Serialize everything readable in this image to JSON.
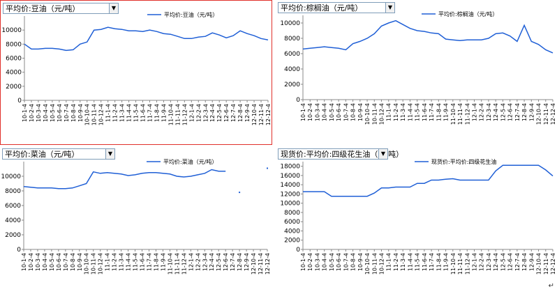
{
  "panels": [
    {
      "dropdown": "平均价:豆油（元/吨）",
      "chart_data": {
        "type": "line",
        "legend": "平均价:豆油（元/吨）",
        "ylim": [
          0,
          12000
        ],
        "yticks": [
          0,
          2000,
          4000,
          6000,
          8000,
          10000
        ],
        "x_labels": [
          "10-1-4",
          "10-2-4",
          "10-3-4",
          "10-4-4",
          "10-5-4",
          "10-6-4",
          "10-7-4",
          "10-8-4",
          "10-9-4",
          "10-10-4",
          "10-11-4",
          "10-12-4",
          "11-1-4",
          "11-2-4",
          "11-3-4",
          "11-4-4",
          "11-5-4",
          "11-6-4",
          "11-7-4",
          "11-8-4",
          "11-9-4",
          "11-10-4",
          "11-11-4",
          "11-12-4",
          "12-1-4",
          "12-2-4",
          "12-3-4",
          "12-4-4",
          "12-5-4",
          "12-6-4",
          "12-7-4",
          "12-8-4",
          "12-9-4",
          "12-10-4",
          "12-11-4",
          "12-12-4"
        ],
        "series": [
          {
            "name": "平均价:豆油（元/吨）",
            "color": "#1f5fd6",
            "values": [
              8000,
              7300,
              7300,
              7400,
              7400,
              7300,
              7100,
              7200,
              8000,
              8300,
              10000,
              10100,
              10400,
              10200,
              10100,
              9900,
              9900,
              9800,
              10000,
              9800,
              9500,
              9400,
              9100,
              8800,
              8800,
              9000,
              9100,
              9600,
              9300,
              8900,
              9200,
              9900,
              9500,
              9200,
              8800,
              8600
            ]
          }
        ]
      }
    },
    {
      "dropdown": "平均价:棕榈油（元/吨）",
      "chart_data": {
        "type": "line",
        "legend": "平均价:棕榈油（元/吨）",
        "ylim": [
          0,
          11000
        ],
        "yticks": [
          0,
          2000,
          4000,
          6000,
          8000,
          10000
        ],
        "x_labels": [
          "10-1-4",
          "10-2-4",
          "10-3-4",
          "10-4-4",
          "10-5-4",
          "10-6-4",
          "10-7-4",
          "10-8-4",
          "10-9-4",
          "10-10-4",
          "10-11-4",
          "10-12-4",
          "11-1-4",
          "11-2-4",
          "11-3-4",
          "11-4-4",
          "11-5-4",
          "11-6-4",
          "11-7-4",
          "11-8-4",
          "11-9-4",
          "11-10-4",
          "11-11-4",
          "11-12-4",
          "12-1-4",
          "12-2-4",
          "12-3-4",
          "12-4-4",
          "12-5-4",
          "12-6-4",
          "12-7-4",
          "12-8-4",
          "12-9-4",
          "12-10-4",
          "12-11-4",
          "12-12-4"
        ],
        "series": [
          {
            "name": "平均价:棕榈油（元/吨）",
            "color": "#1f5fd6",
            "values": [
              6600,
              6700,
              6800,
              6900,
              6800,
              6700,
              6500,
              7300,
              7600,
              8000,
              8600,
              9600,
              10000,
              10300,
              9800,
              9300,
              9000,
              8900,
              8700,
              8600,
              7900,
              7800,
              7700,
              7800,
              7800,
              7800,
              8000,
              8600,
              8700,
              8300,
              7600,
              9700,
              7600,
              7200,
              6500,
              6100
            ]
          }
        ]
      }
    },
    {
      "dropdown": "平均价:菜油（元/吨）",
      "chart_data": {
        "type": "line",
        "legend": "平均价:菜油（元/吨）",
        "ylim": [
          0,
          12000
        ],
        "yticks": [
          0,
          2000,
          4000,
          6000,
          8000,
          10000
        ],
        "x_labels": [
          "10-1-4",
          "10-2-4",
          "10-3-4",
          "10-4-4",
          "10-5-4",
          "10-6-4",
          "10-7-4",
          "10-8-4",
          "10-9-4",
          "10-10-4",
          "10-11-4",
          "10-12-4",
          "11-1-4",
          "11-2-4",
          "11-3-4",
          "11-4-4",
          "11-5-4",
          "11-6-4",
          "11-7-4",
          "11-8-4",
          "11-9-4",
          "11-10-4",
          "11-11-4",
          "11-12-4",
          "12-1-4",
          "12-2-4",
          "12-3-4",
          "12-4-4",
          "12-5-4",
          "12-6-4",
          "12-7-4",
          "12-8-4",
          "12-9-4",
          "12-10-4",
          "12-11-4",
          "12-12-4"
        ],
        "series": [
          {
            "name": "平均价:菜油（元/吨）",
            "color": "#1f5fd6",
            "values": [
              8600,
              8500,
              8400,
              8400,
              8400,
              8300,
              8300,
              8400,
              8700,
              9000,
              10600,
              10400,
              10500,
              10400,
              10300,
              10100,
              10200,
              10400,
              10500,
              10500,
              10400,
              10300,
              10000,
              9900,
              10000,
              10200,
              10400,
              10900,
              10700,
              10700,
              null,
              7800,
              null,
              null,
              null,
              11100
            ]
          }
        ]
      }
    },
    {
      "dropdown": "现货价:平均价:四级花生油（元/吨）",
      "chart_data": {
        "type": "line",
        "legend": "现货价:平均价:四级花生油",
        "ylim": [
          0,
          19000
        ],
        "yticks": [
          0,
          2000,
          4000,
          6000,
          8000,
          10000,
          12000,
          14000,
          16000,
          18000
        ],
        "x_labels": [
          "10-1-4",
          "10-2-4",
          "10-3-4",
          "10-4-4",
          "10-5-4",
          "10-6-4",
          "10-7-4",
          "10-8-4",
          "10-9-4",
          "10-10-4",
          "10-11-4",
          "10-12-4",
          "11-1-4",
          "11-2-4",
          "11-3-4",
          "11-4-4",
          "11-5-4",
          "11-6-4",
          "11-7-4",
          "11-8-4",
          "11-9-4",
          "11-10-4",
          "11-11-4",
          "11-12-4",
          "12-1-4",
          "12-2-4",
          "12-3-4",
          "12-4-4",
          "12-5-4",
          "12-6-4",
          "12-7-4",
          "12-8-4",
          "12-9-4",
          "12-10-4",
          "12-11-4",
          "12-12-4"
        ],
        "series": [
          {
            "name": "现货价:平均价:四级花生油",
            "color": "#1f5fd6",
            "values": [
              12500,
              12500,
              12500,
              12500,
              11500,
              11500,
              11500,
              11500,
              11500,
              11500,
              12200,
              13300,
              13300,
              13500,
              13500,
              13500,
              14300,
              14300,
              15000,
              15000,
              15200,
              15300,
              15000,
              15000,
              15000,
              15000,
              15000,
              17000,
              18200,
              18200,
              18200,
              18200,
              18200,
              18200,
              17200,
              15900
            ]
          }
        ]
      }
    }
  ]
}
